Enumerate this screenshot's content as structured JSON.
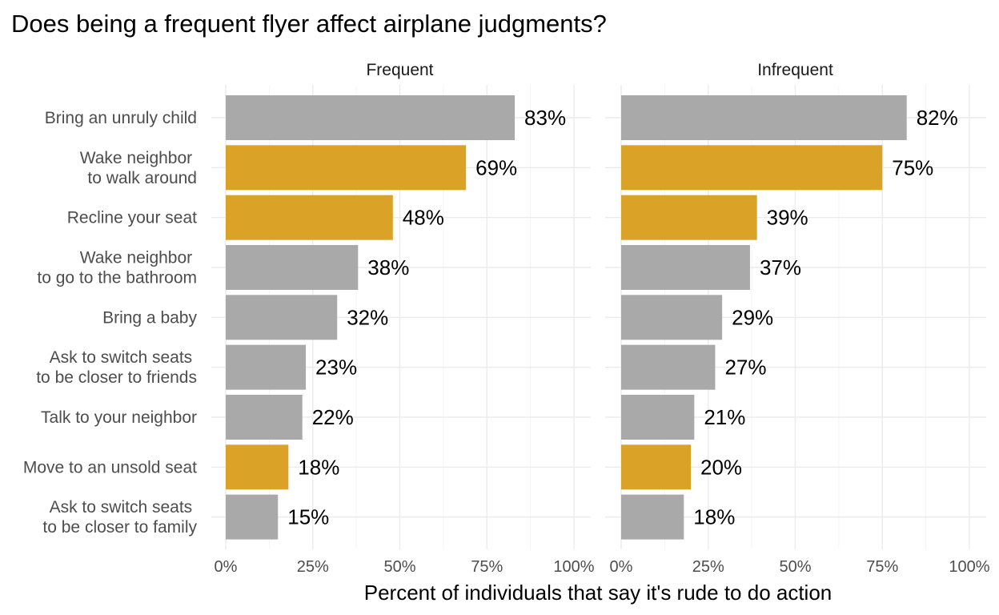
{
  "chart_data": {
    "type": "bar",
    "orientation": "horizontal",
    "title": "Does being a frequent flyer affect airplane judgments?",
    "xlabel": "Percent of individuals that say it's rude to do action",
    "ylabel": "",
    "xlim": [
      0,
      1
    ],
    "x_ticks": [
      "0%",
      "25%",
      "50%",
      "75%",
      "100%"
    ],
    "grid": true,
    "legend": "none",
    "colors": {
      "default": "#a9a9a9",
      "highlight": "#daa226"
    },
    "categories": [
      [
        "Bring an unruly child"
      ],
      [
        "Wake neighbor ",
        "to walk around"
      ],
      [
        "Recline your seat"
      ],
      [
        "Wake neighbor ",
        "to go to the bathroom"
      ],
      [
        "Bring a baby"
      ],
      [
        "Ask to switch seats ",
        "to be closer to friends"
      ],
      [
        "Talk to your neighbor"
      ],
      [
        "Move to an unsold seat"
      ],
      [
        "Ask to switch seats ",
        "to be closer to family"
      ]
    ],
    "highlighted": [
      false,
      true,
      true,
      false,
      false,
      false,
      false,
      true,
      false
    ],
    "panels": [
      {
        "name": "Frequent",
        "values": [
          0.83,
          0.69,
          0.48,
          0.38,
          0.32,
          0.23,
          0.22,
          0.18,
          0.15
        ],
        "labels": [
          "83%",
          "69%",
          "48%",
          "38%",
          "32%",
          "23%",
          "22%",
          "18%",
          "15%"
        ]
      },
      {
        "name": "Infrequent",
        "values": [
          0.82,
          0.75,
          0.39,
          0.37,
          0.29,
          0.27,
          0.21,
          0.2,
          0.18
        ],
        "labels": [
          "82%",
          "75%",
          "39%",
          "37%",
          "29%",
          "27%",
          "21%",
          "20%",
          "18%"
        ]
      }
    ]
  }
}
